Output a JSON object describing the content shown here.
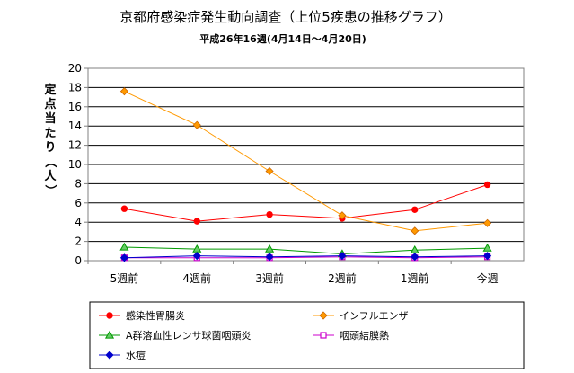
{
  "chart_data": {
    "type": "line",
    "title": "京都府感染症発生動向調査（上位5疾患の推移グラフ）",
    "subtitle": "平成26年16週(4月14日～4月20日)",
    "ylabel": "定点当たり（人）",
    "xlabel": "",
    "categories": [
      "5週前",
      "4週前",
      "3週前",
      "2週前",
      "1週前",
      "今週"
    ],
    "ylim": [
      0,
      20
    ],
    "yticks": [
      0,
      2,
      4,
      6,
      8,
      10,
      12,
      14,
      16,
      18,
      20
    ],
    "grid": "horizontal",
    "legend_position": "bottom",
    "series": [
      {
        "name": "感染性胃腸炎",
        "color": "#ff0000",
        "marker": "circle",
        "values": [
          5.4,
          4.1,
          4.8,
          4.4,
          5.3,
          7.9
        ]
      },
      {
        "name": "インフルエンザ",
        "color": "#ff9900",
        "marker": "diamond",
        "values": [
          17.6,
          14.1,
          9.3,
          4.7,
          3.1,
          3.9
        ]
      },
      {
        "name": "A群溶血性レンサ球菌咽頭炎",
        "color": "#009900",
        "marker": "triangle",
        "values": [
          1.4,
          1.2,
          1.2,
          0.7,
          1.1,
          1.3
        ]
      },
      {
        "name": "咽頭結膜熱",
        "color": "#cc00cc",
        "marker": "square",
        "values": [
          0.3,
          0.3,
          0.3,
          0.4,
          0.3,
          0.4
        ]
      },
      {
        "name": "水痘",
        "color": "#0000cc",
        "marker": "diamond",
        "values": [
          0.3,
          0.5,
          0.4,
          0.5,
          0.4,
          0.5
        ]
      }
    ]
  }
}
